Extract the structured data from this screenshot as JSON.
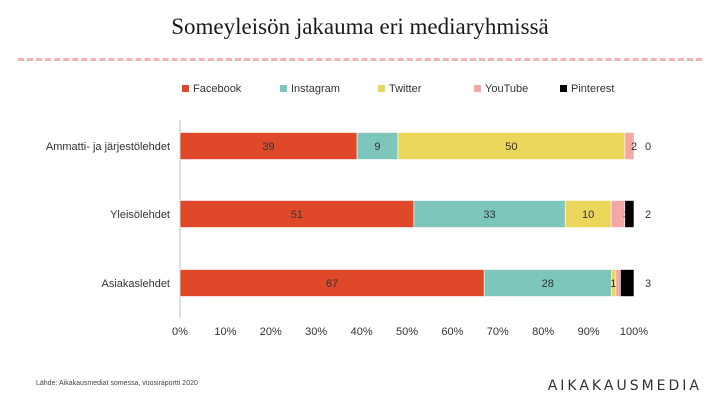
{
  "title": "Someyleisön jakauma eri mediaryhmissä",
  "source": "Lähde: Aikakausmediat somessa, vuosiraportti 2020",
  "logo": "AIKAKAUSMEDIA",
  "colors": {
    "Facebook": "#e0482a",
    "Instagram": "#7cc6bb",
    "Twitter": "#ebd55a",
    "YouTube": "#f3a7a8",
    "Pinterest": "#000000"
  },
  "chart_data": {
    "type": "bar",
    "orientation": "horizontal",
    "stacked": "percent",
    "categories": [
      "Ammatti- ja järjestölehdet",
      "Yleisölehdet",
      "Asiakaslehdet"
    ],
    "series": [
      {
        "name": "Facebook",
        "values": [
          39,
          51,
          67
        ]
      },
      {
        "name": "Instagram",
        "values": [
          9,
          33,
          28
        ]
      },
      {
        "name": "Twitter",
        "values": [
          50,
          10,
          1
        ]
      },
      {
        "name": "YouTube",
        "values": [
          2,
          3,
          1
        ]
      },
      {
        "name": "Pinterest",
        "values": [
          0,
          2,
          3
        ]
      }
    ],
    "xlim": [
      0,
      100
    ],
    "xticks": [
      "0%",
      "10%",
      "20%",
      "30%",
      "40%",
      "50%",
      "60%",
      "70%",
      "80%",
      "90%",
      "100%"
    ],
    "legend_position": "top",
    "grid": false
  }
}
